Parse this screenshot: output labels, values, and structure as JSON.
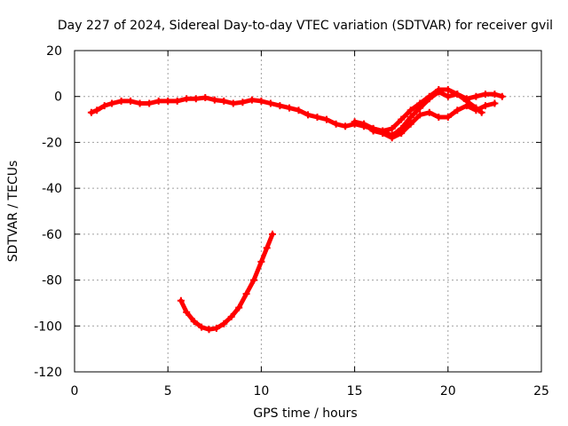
{
  "chart_data": {
    "type": "scatter",
    "title": "Day 227 of 2024, Sidereal Day-to-day VTEC variation (SDTVAR) for receiver gvil",
    "xlabel": "GPS time / hours",
    "ylabel": "SDTVAR / TECUs",
    "xlim": [
      0,
      25
    ],
    "ylim": [
      -120,
      20
    ],
    "xticks": [
      0,
      5,
      10,
      15,
      20,
      25
    ],
    "yticks": [
      -120,
      -100,
      -80,
      -60,
      -40,
      -20,
      0,
      20
    ],
    "xtick_labels": [
      "0",
      "5",
      "10",
      "15",
      "20",
      "25"
    ],
    "ytick_labels": [
      "-120",
      "-100",
      "-80",
      "-60",
      "-40",
      "-20",
      "0",
      "20"
    ],
    "grid": true,
    "series_color": "#ff0000",
    "series": [
      {
        "name": "main-track",
        "points": [
          [
            0.9,
            -7
          ],
          [
            1.2,
            -6
          ],
          [
            1.6,
            -4
          ],
          [
            2.0,
            -3
          ],
          [
            2.5,
            -2
          ],
          [
            3.0,
            -2
          ],
          [
            3.5,
            -3
          ],
          [
            4.0,
            -3
          ],
          [
            4.5,
            -2
          ],
          [
            5.0,
            -2
          ],
          [
            5.5,
            -2
          ],
          [
            6.0,
            -1
          ],
          [
            6.5,
            -1
          ],
          [
            7.0,
            -0.5
          ],
          [
            7.5,
            -1.5
          ],
          [
            8.0,
            -2
          ],
          [
            8.5,
            -3
          ],
          [
            9.0,
            -2.5
          ],
          [
            9.5,
            -1.5
          ],
          [
            10.0,
            -2
          ],
          [
            10.5,
            -3
          ],
          [
            11.0,
            -4
          ],
          [
            11.5,
            -5
          ],
          [
            12.0,
            -6
          ],
          [
            12.5,
            -8
          ],
          [
            13.0,
            -9
          ],
          [
            13.5,
            -10
          ],
          [
            14.0,
            -12
          ],
          [
            14.5,
            -13
          ],
          [
            15.0,
            -12
          ],
          [
            15.5,
            -13
          ],
          [
            16.0,
            -14
          ],
          [
            16.5,
            -15
          ],
          [
            17.0,
            -17
          ],
          [
            17.5,
            -14
          ],
          [
            18.0,
            -9
          ],
          [
            18.5,
            -5
          ],
          [
            19.0,
            -1
          ],
          [
            19.5,
            2
          ],
          [
            20.0,
            0
          ],
          [
            20.5,
            1
          ],
          [
            21.0,
            -1
          ],
          [
            21.5,
            0
          ],
          [
            22.0,
            1
          ],
          [
            22.5,
            1
          ],
          [
            22.9,
            0
          ]
        ]
      },
      {
        "name": "branch-upper",
        "points": [
          [
            15.0,
            -11
          ],
          [
            15.5,
            -12
          ],
          [
            16.0,
            -14
          ],
          [
            16.5,
            -15
          ],
          [
            17.0,
            -14
          ],
          [
            17.5,
            -10
          ],
          [
            18.0,
            -6
          ],
          [
            18.5,
            -3
          ],
          [
            19.0,
            0
          ],
          [
            19.5,
            3
          ],
          [
            20.0,
            3
          ],
          [
            20.5,
            1
          ],
          [
            21.0,
            -2
          ],
          [
            21.5,
            -5
          ],
          [
            21.8,
            -7
          ]
        ]
      },
      {
        "name": "branch-lower",
        "points": [
          [
            15.5,
            -12
          ],
          [
            16.0,
            -15
          ],
          [
            16.5,
            -16
          ],
          [
            17.0,
            -18
          ],
          [
            17.5,
            -16
          ],
          [
            18.0,
            -12
          ],
          [
            18.5,
            -8
          ],
          [
            19.0,
            -7
          ],
          [
            19.5,
            -9
          ],
          [
            20.0,
            -9
          ],
          [
            20.5,
            -6
          ],
          [
            21.0,
            -4
          ],
          [
            21.5,
            -6
          ],
          [
            22.0,
            -4
          ],
          [
            22.5,
            -3
          ]
        ]
      },
      {
        "name": "dip-curve",
        "points": [
          [
            5.7,
            -89
          ],
          [
            6.0,
            -94
          ],
          [
            6.4,
            -98
          ],
          [
            6.8,
            -100.5
          ],
          [
            7.2,
            -101.5
          ],
          [
            7.6,
            -101
          ],
          [
            8.0,
            -99
          ],
          [
            8.4,
            -96
          ],
          [
            8.8,
            -92
          ],
          [
            9.2,
            -86
          ],
          [
            9.6,
            -80
          ],
          [
            10.0,
            -72
          ],
          [
            10.3,
            -66
          ],
          [
            10.6,
            -60
          ]
        ]
      }
    ]
  }
}
